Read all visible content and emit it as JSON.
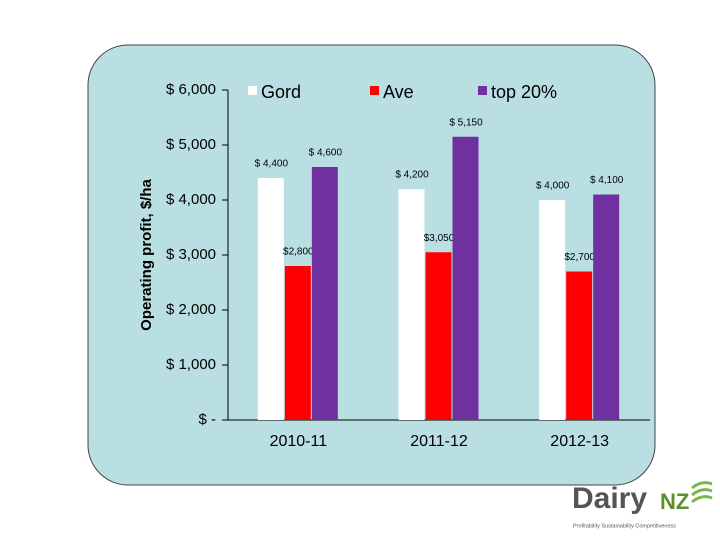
{
  "chart_data": {
    "type": "bar",
    "y_label": "Operating profit, $/ha",
    "categories": [
      "2010-11",
      "2011-12",
      "2012-13"
    ],
    "series": [
      {
        "name": "Gord",
        "color": "#ffffff",
        "values": [
          4400,
          4200,
          4000
        ],
        "value_labels": [
          "$ 4,400",
          "$ 4,200",
          "$ 4,000"
        ]
      },
      {
        "name": "Ave",
        "color": "#ff0000",
        "values": [
          2800,
          3050,
          2700
        ],
        "value_labels": [
          "$2,800",
          "$3,050",
          "$2,700"
        ]
      },
      {
        "name": "top 20%",
        "color": "#7030a0",
        "values": [
          4600,
          5150,
          4100
        ],
        "value_labels": [
          "$ 4,600",
          "$ 5,150",
          "$ 4,100"
        ]
      }
    ],
    "ylim": [
      0,
      6000
    ],
    "yticks": [
      {
        "value": 0,
        "label": "$ -"
      },
      {
        "value": 1000,
        "label": "$ 1,000"
      },
      {
        "value": 2000,
        "label": "$ 2,000"
      },
      {
        "value": 3000,
        "label": "$ 3,000"
      },
      {
        "value": 4000,
        "label": "$ 4,000"
      },
      {
        "value": 5000,
        "label": "$ 5,000"
      },
      {
        "value": 6000,
        "label": "$ 6,000"
      }
    ],
    "legend": "top"
  },
  "logo": {
    "name": "Dairy",
    "suffix": "NZ",
    "tagline": "Profitability Sustainability Competitiveness"
  }
}
